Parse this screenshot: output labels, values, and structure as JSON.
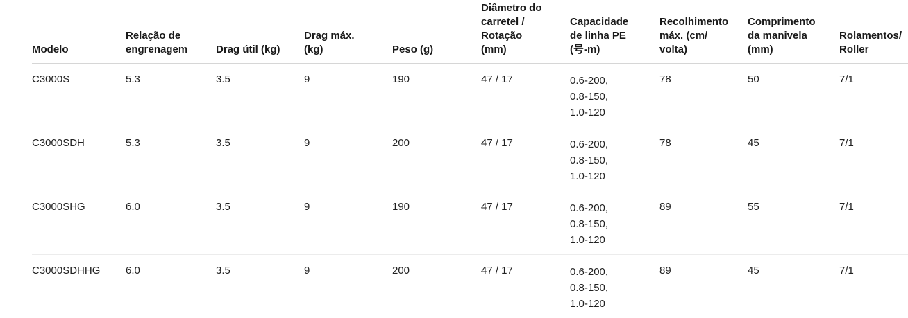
{
  "table": {
    "headers": [
      "Modelo",
      "Relação de\nengrenagem",
      "Drag útil (kg)",
      "Drag máx.\n(kg)",
      "Peso (g)",
      "Diâmetro do\ncarretel /\nRotação\n(mm)",
      "Capacidade\nde linha PE\n(号-m)",
      "Recolhimento\nmáx. (cm/\nvolta)",
      "Comprimento\nda manivela\n(mm)",
      "Rolamentos/\nRoller"
    ],
    "rows": [
      [
        "C3000S",
        "5.3",
        "3.5",
        "9",
        "190",
        "47 / 17",
        "0.6-200,\n0.8-150,\n1.0-120",
        "78",
        "50",
        "7/1"
      ],
      [
        "C3000SDH",
        "5.3",
        "3.5",
        "9",
        "200",
        "47 / 17",
        "0.6-200,\n0.8-150,\n1.0-120",
        "78",
        "45",
        "7/1"
      ],
      [
        "C3000SHG",
        "6.0",
        "3.5",
        "9",
        "190",
        "47 / 17",
        "0.6-200,\n0.8-150,\n1.0-120",
        "89",
        "55",
        "7/1"
      ],
      [
        "C3000SDHHG",
        "6.0",
        "3.5",
        "9",
        "200",
        "47 / 17",
        "0.6-200,\n0.8-150,\n1.0-120",
        "89",
        "45",
        "7/1"
      ]
    ]
  },
  "colors": {
    "header_text": "#1a1a1a",
    "body_text": "#212121",
    "header_border": "#d6d6d6",
    "row_border": "#ececec",
    "background": "#ffffff"
  }
}
